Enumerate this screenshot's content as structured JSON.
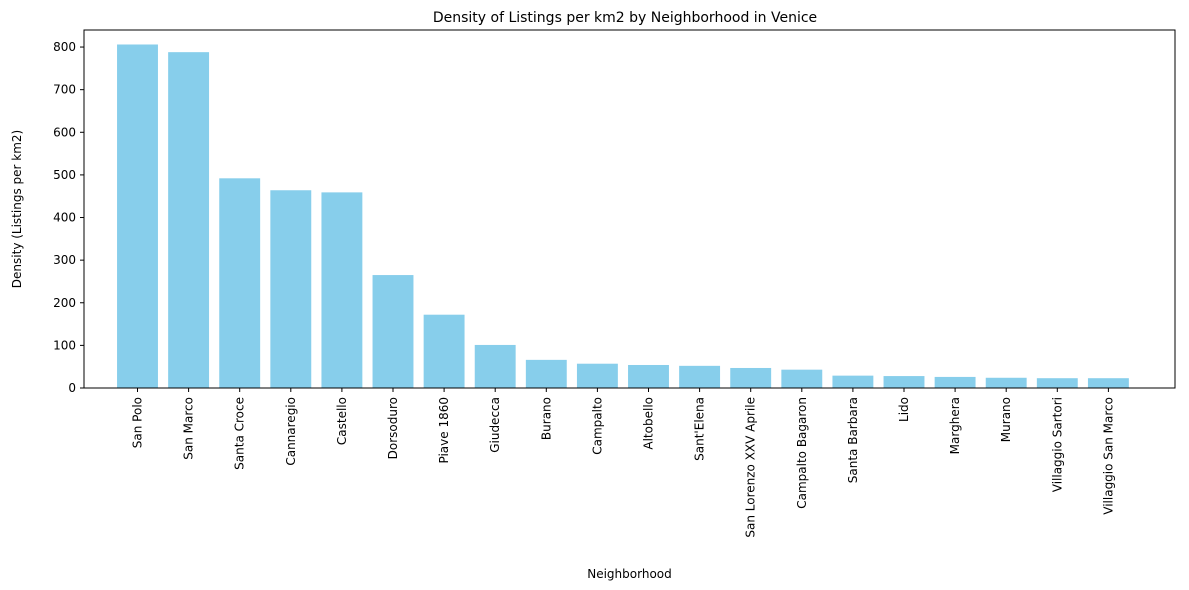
{
  "chart_data": {
    "type": "bar",
    "title": "Density of Listings per km2 by Neighborhood in Venice",
    "xlabel": "Neighborhood",
    "ylabel": "Density (Listings per km2)",
    "ylim": [
      0,
      840
    ],
    "yticks": [
      0,
      100,
      200,
      300,
      400,
      500,
      600,
      700,
      800
    ],
    "grid": false,
    "bar_color": "#87CEEB",
    "categories": [
      "San Polo",
      "San Marco",
      "Santa Croce",
      "Cannaregio",
      "Castello",
      "Dorsoduro",
      "Piave 1860",
      "Giudecca",
      "Burano",
      "Campalto",
      "Altobello",
      "Sant'Elena",
      "San Lorenzo XXV Aprile",
      "Campalto Bagaron",
      "Santa Barbara",
      "Lido",
      "Marghera",
      "Murano",
      "Villaggio Sartori",
      "Villaggio San Marco"
    ],
    "values": [
      806,
      788,
      492,
      464,
      459,
      265,
      172,
      101,
      66,
      57,
      54,
      52,
      47,
      43,
      29,
      28,
      26,
      24,
      23,
      23
    ]
  }
}
